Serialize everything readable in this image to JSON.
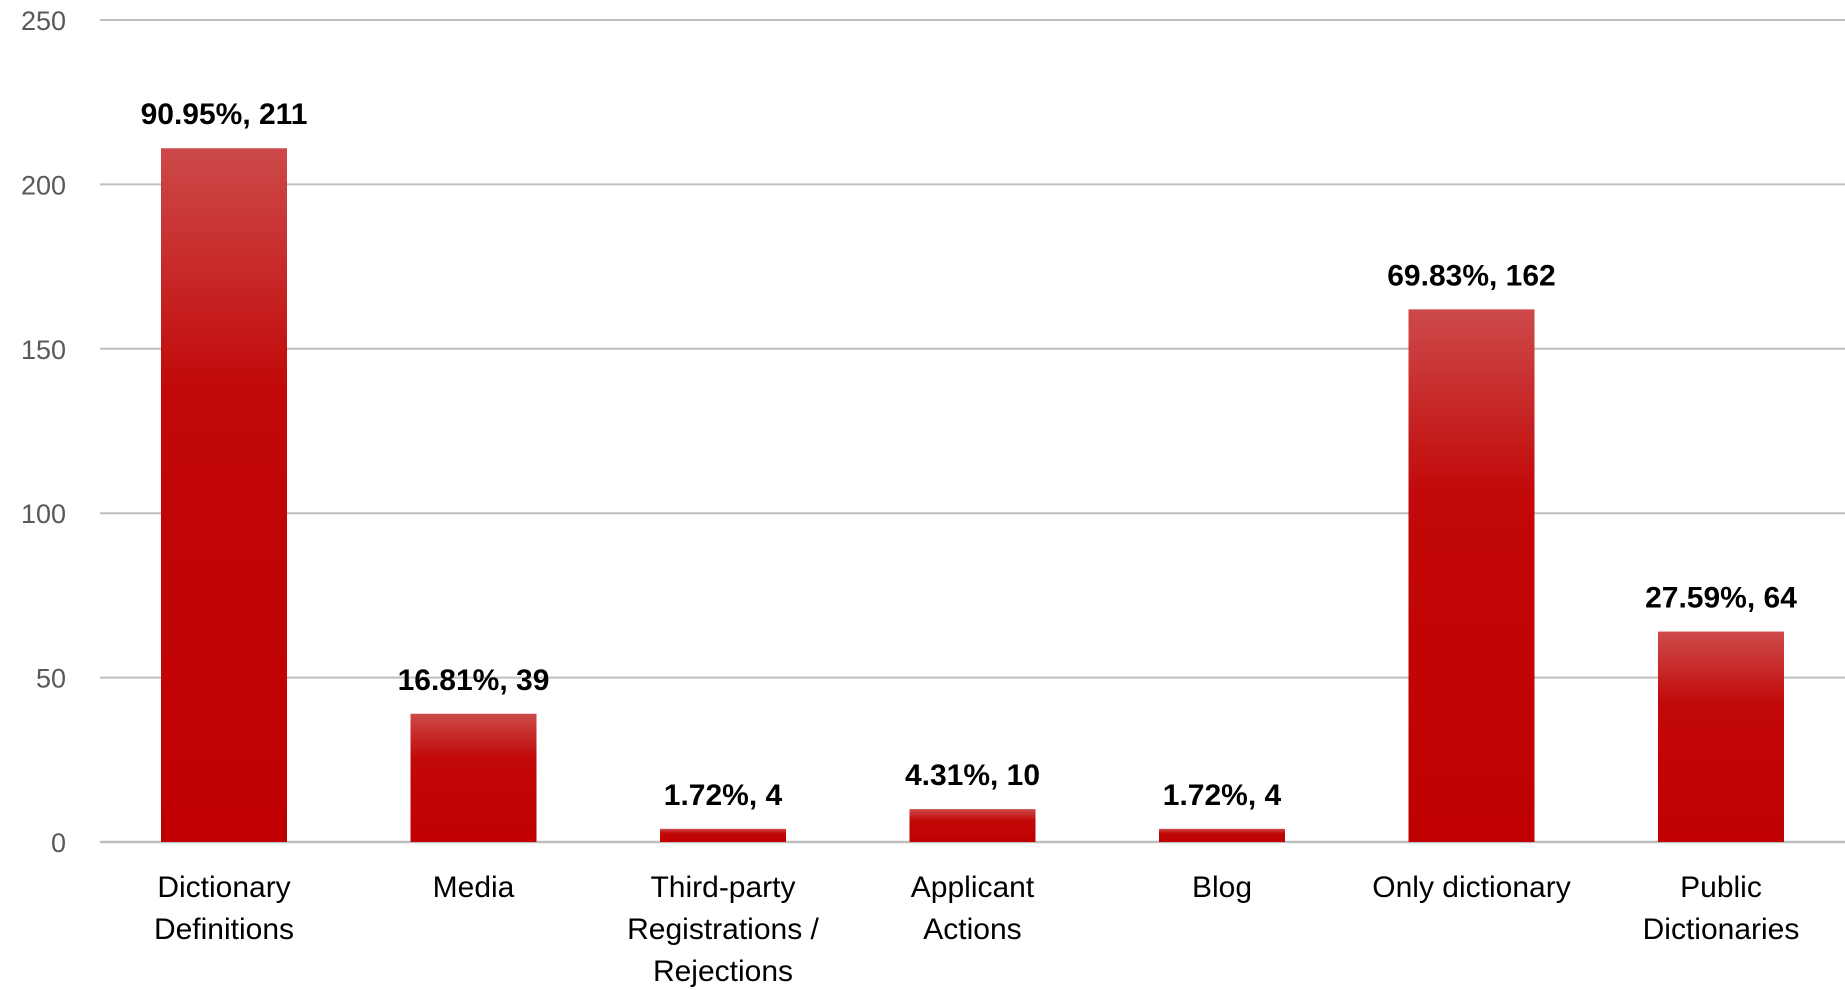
{
  "chart_data": {
    "type": "bar",
    "title": "",
    "xlabel": "",
    "ylabel": "",
    "ylim": [
      0,
      250
    ],
    "yticks": [
      0,
      50,
      100,
      150,
      200,
      250
    ],
    "grid": true,
    "legend": "none",
    "colors": {
      "bar_top": "#cd4a4a",
      "bar_main": "#c00000",
      "grid": "#bfbfbf",
      "tick_text": "#595959"
    },
    "categories": [
      [
        "Dictionary",
        "Definitions"
      ],
      [
        "Media"
      ],
      [
        "Third-party",
        "Registrations /",
        "Rejections"
      ],
      [
        "Applicant",
        "Actions"
      ],
      [
        "Blog"
      ],
      [
        "Only dictionary"
      ],
      [
        "Public",
        "Dictionaries"
      ]
    ],
    "values": [
      211,
      39,
      4,
      10,
      4,
      162,
      64
    ],
    "data_labels": [
      "90.95%, 211",
      "16.81%, 39",
      "1.72%, 4",
      "4.31%, 10",
      "1.72%, 4",
      "69.83%, 162",
      "27.59%, 64"
    ]
  }
}
